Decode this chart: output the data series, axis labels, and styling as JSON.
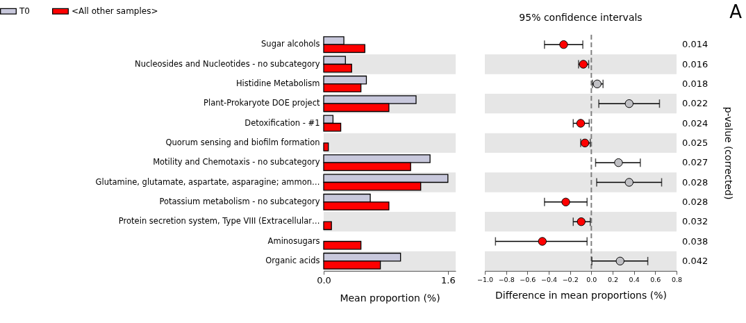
{
  "chart_data": [
    {
      "type": "bar",
      "orientation": "horizontal",
      "categories": [
        "Sugar alcohols",
        "Nucleosides and Nucleotides - no subcategory",
        "Histidine Metabolism",
        "Plant-Prokaryote DOE project",
        "Detoxification - #1",
        "Quorum sensing and biofilm formation",
        "Motility and Chemotaxis - no subcategory",
        "Glutamine, glutamate, aspartate, asparagine; ammon…",
        "Potassium metabolism - no subcategory",
        "Protein secretion system, Type VIII (Extracellular…",
        "Aminosugars",
        "Organic acids"
      ],
      "series": [
        {
          "name": "T0",
          "color": "#c8c8dc",
          "values": [
            0.26,
            0.28,
            0.55,
            1.19,
            0.12,
            0.0,
            1.37,
            1.6,
            0.6,
            0.0,
            0.0,
            0.99
          ]
        },
        {
          "name": "<All other samples>",
          "color": "#ff0000",
          "values": [
            0.53,
            0.36,
            0.48,
            0.84,
            0.22,
            0.06,
            1.12,
            1.25,
            0.84,
            0.1,
            0.48,
            0.73
          ]
        }
      ],
      "xlabel": "Mean proportion (%)",
      "xlim": [
        0,
        1.7
      ],
      "xticks": [
        {
          "value": 0,
          "label": "0.0"
        },
        {
          "value": 1.6,
          "label": "1.6"
        }
      ],
      "legend": "top left",
      "bands": [
        {
          "axis": "y",
          "from": "Nucleosides and Nucleotides - no subcategory",
          "to": "Nucleosides and Nucleotides - no subcategory",
          "color": "#e6e6e6"
        },
        {
          "axis": "y",
          "from": "Plant-Prokaryote DOE project",
          "to": "Plant-Prokaryote DOE project",
          "color": "#e6e6e6"
        },
        {
          "axis": "y",
          "from": "Quorum sensing and biofilm formation",
          "to": "Quorum sensing and biofilm formation",
          "color": "#e6e6e6"
        },
        {
          "axis": "y",
          "from": "Glutamine, glutamate, aspartate, asparagine; ammon…",
          "to": "Glutamine, glutamate, aspartate, asparagine; ammon…",
          "color": "#e6e6e6"
        },
        {
          "axis": "y",
          "from": "Protein secretion system, Type VIII (Extracellular…",
          "to": "Protein secretion system, Type VIII (Extracellular…",
          "color": "#e6e6e6"
        },
        {
          "axis": "y",
          "from": "Organic acids",
          "to": "Organic acids",
          "color": "#e6e6e6"
        }
      ]
    },
    {
      "type": "scatter",
      "orientation": "horizontal",
      "title": "95% confidence intervals",
      "categories": [
        "Sugar alcohols",
        "Nucleosides and Nucleotides - no subcategory",
        "Histidine Metabolism",
        "Plant-Prokaryote DOE project",
        "Detoxification - #1",
        "Quorum sensing and biofilm formation",
        "Motility and Chemotaxis - no subcategory",
        "Glutamine, glutamate, aspartate, asparagine; ammon…",
        "Potassium metabolism - no subcategory",
        "Protein secretion system, Type VIII (Extracellular…",
        "Aminosugars",
        "Organic acids"
      ],
      "series": [
        {
          "colors": [
            "#ff0000",
            "#ff0000",
            "#c0c0c4",
            "#c0c0c4",
            "#ff0000",
            "#ff0000",
            "#c0c0c4",
            "#c0c0c4",
            "#ff0000",
            "#ff0000",
            "#ff0000",
            "#c0c0c4"
          ],
          "values": [
            -0.26,
            -0.075,
            0.055,
            0.355,
            -0.1,
            -0.06,
            0.255,
            0.355,
            -0.24,
            -0.095,
            -0.46,
            0.27
          ],
          "errors": [
            [
              -0.44,
              -0.08
            ],
            [
              -0.12,
              -0.025
            ],
            [
              0.01,
              0.11
            ],
            [
              0.07,
              0.64
            ],
            [
              -0.17,
              -0.02
            ],
            [
              -0.1,
              -0.01
            ],
            [
              0.04,
              0.46
            ],
            [
              0.05,
              0.66
            ],
            [
              -0.44,
              -0.04
            ],
            [
              -0.17,
              -0.01
            ],
            [
              -0.9,
              -0.04
            ],
            [
              0.005,
              0.53
            ]
          ]
        }
      ],
      "xlabel": "Difference in mean proportions (%)",
      "y2label": "p-value (corrected)",
      "xlim": [
        -1.0,
        0.8
      ],
      "xticks": [
        {
          "value": -1.0,
          "label": "−1.0"
        },
        {
          "value": -0.8,
          "label": "−0.8"
        },
        {
          "value": -0.6,
          "label": "−0.6"
        },
        {
          "value": -0.4,
          "label": "−0.4"
        },
        {
          "value": -0.2,
          "label": "−0.2"
        },
        {
          "value": 0,
          "label": "0.0"
        },
        {
          "value": 0.2,
          "label": "0.2"
        },
        {
          "value": 0.4,
          "label": "0.4"
        },
        {
          "value": 0.6,
          "label": "0.6"
        },
        {
          "value": 0.8,
          "label": "0.8"
        }
      ],
      "tick_labels": "x",
      "marker": "circle",
      "ref_lines": [
        {
          "axis": "x",
          "value": 0,
          "line_style": "dashed",
          "color": "#808080"
        }
      ],
      "bands": [
        {
          "axis": "y",
          "from": "Nucleosides and Nucleotides - no subcategory",
          "to": "Nucleosides and Nucleotides - no subcategory",
          "color": "#e6e6e6"
        },
        {
          "axis": "y",
          "from": "Plant-Prokaryote DOE project",
          "to": "Plant-Prokaryote DOE project",
          "color": "#e6e6e6"
        },
        {
          "axis": "y",
          "from": "Quorum sensing and biofilm formation",
          "to": "Quorum sensing and biofilm formation",
          "color": "#e6e6e6"
        },
        {
          "axis": "y",
          "from": "Glutamine, glutamate, aspartate, asparagine; ammon…",
          "to": "Glutamine, glutamate, aspartate, asparagine; ammon…",
          "color": "#e6e6e6"
        },
        {
          "axis": "y",
          "from": "Protein secretion system, Type VIII (Extracellular…",
          "to": "Protein secretion system, Type VIII (Extracellular…",
          "color": "#e6e6e6"
        },
        {
          "axis": "y",
          "from": "Organic acids",
          "to": "Organic acids",
          "color": "#e6e6e6"
        }
      ],
      "annotations": [
        "0.014",
        "0.016",
        "0.018",
        "0.022",
        "0.024",
        "0.025",
        "0.027",
        "0.028",
        "0.028",
        "0.032",
        "0.038",
        "0.042",
        "A"
      ]
    }
  ]
}
